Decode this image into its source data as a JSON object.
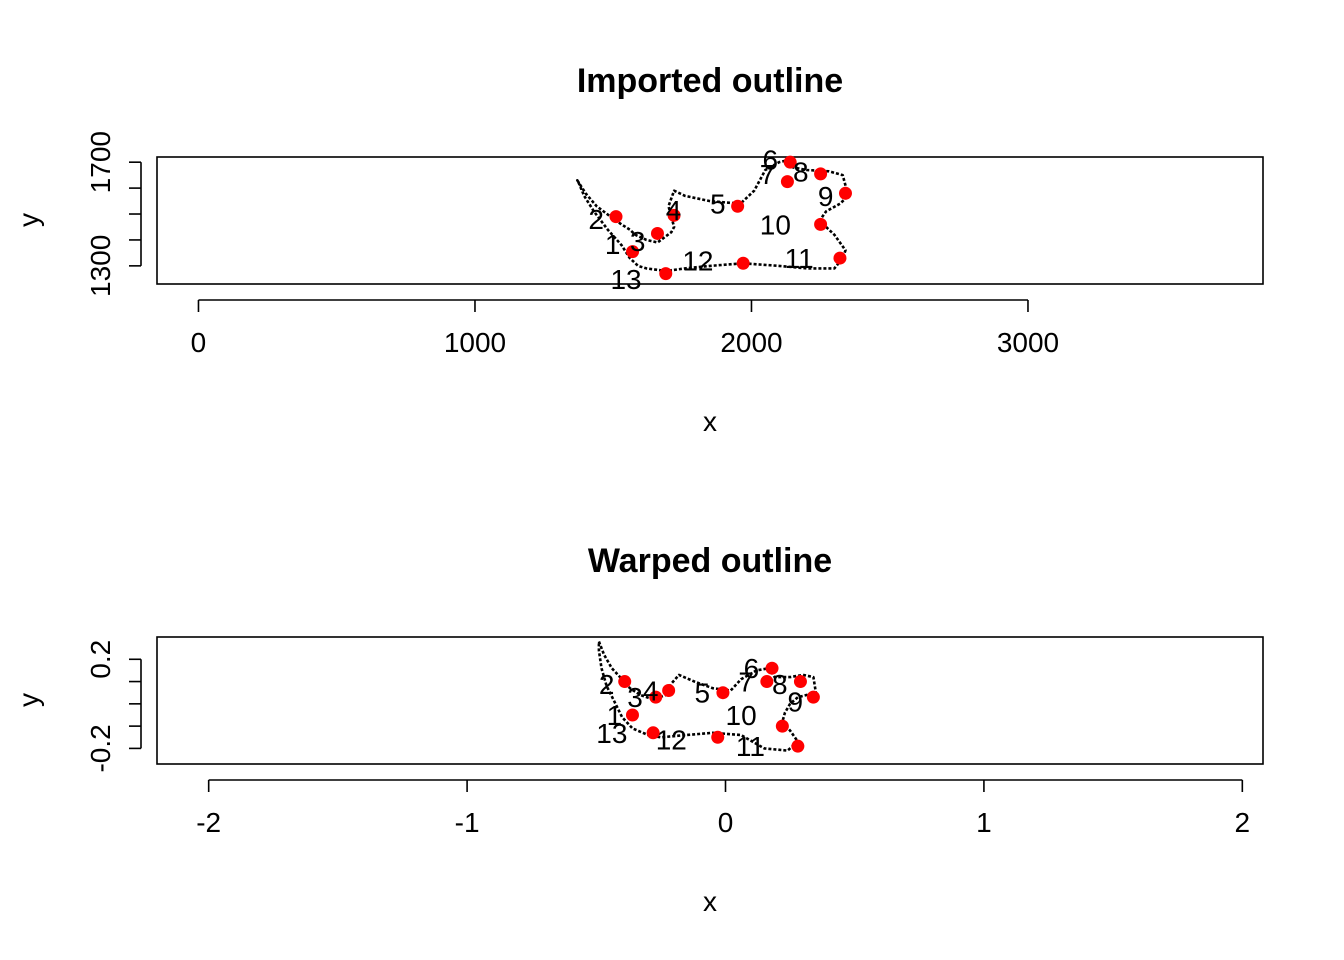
{
  "chart_data": [
    {
      "type": "scatter",
      "title": "Imported outline",
      "xlabel": "x",
      "ylabel": "y",
      "xlim": [
        -150,
        3850
      ],
      "ylim": [
        1230,
        1720
      ],
      "xticks": [
        0,
        1000,
        2000,
        3000
      ],
      "yticks": [
        1300,
        1400,
        1500,
        1600,
        1700
      ],
      "yticklabels": [
        "1300",
        "",
        "",
        "",
        "1700"
      ],
      "colors": {
        "landmark": "#ff0000",
        "outline": "#000000"
      },
      "outline": [
        [
          1370,
          1630
        ],
        [
          1400,
          1580
        ],
        [
          1440,
          1530
        ],
        [
          1490,
          1490
        ],
        [
          1530,
          1460
        ],
        [
          1560,
          1440
        ],
        [
          1580,
          1420
        ],
        [
          1620,
          1400
        ],
        [
          1660,
          1390
        ],
        [
          1710,
          1430
        ],
        [
          1720,
          1450
        ],
        [
          1710,
          1490
        ],
        [
          1700,
          1530
        ],
        [
          1720,
          1590
        ],
        [
          1760,
          1570
        ],
        [
          1850,
          1550
        ],
        [
          1960,
          1540
        ],
        [
          2010,
          1590
        ],
        [
          2050,
          1670
        ],
        [
          2100,
          1700
        ],
        [
          2140,
          1710
        ],
        [
          2150,
          1680
        ],
        [
          2200,
          1670
        ],
        [
          2280,
          1665
        ],
        [
          2330,
          1650
        ],
        [
          2350,
          1570
        ],
        [
          2320,
          1540
        ],
        [
          2270,
          1510
        ],
        [
          2250,
          1480
        ],
        [
          2260,
          1460
        ],
        [
          2300,
          1420
        ],
        [
          2340,
          1360
        ],
        [
          2330,
          1330
        ],
        [
          2300,
          1290
        ],
        [
          2200,
          1290
        ],
        [
          2100,
          1300
        ],
        [
          1970,
          1310
        ],
        [
          1850,
          1300
        ],
        [
          1760,
          1290
        ],
        [
          1690,
          1280
        ],
        [
          1620,
          1290
        ],
        [
          1590,
          1300
        ],
        [
          1560,
          1330
        ],
        [
          1530,
          1380
        ],
        [
          1480,
          1440
        ],
        [
          1430,
          1510
        ],
        [
          1395,
          1570
        ],
        [
          1375,
          1620
        ]
      ],
      "landmarks": [
        {
          "label": "1",
          "x": 1570,
          "y": 1355
        },
        {
          "label": "2",
          "x": 1510,
          "y": 1490
        },
        {
          "label": "3",
          "x": 1660,
          "y": 1425
        },
        {
          "label": "4",
          "x": 1720,
          "y": 1495
        },
        {
          "label": "5",
          "x": 1950,
          "y": 1530
        },
        {
          "label": "6",
          "x": 2140,
          "y": 1700
        },
        {
          "label": "7",
          "x": 2130,
          "y": 1625
        },
        {
          "label": "8",
          "x": 2250,
          "y": 1655
        },
        {
          "label": "9",
          "x": 2340,
          "y": 1580
        },
        {
          "label": "10",
          "x": 2250,
          "y": 1460
        },
        {
          "label": "11",
          "x": 2320,
          "y": 1330
        },
        {
          "label": "12",
          "x": 1970,
          "y": 1310
        },
        {
          "label": "13",
          "x": 1690,
          "y": 1270
        }
      ],
      "label_offsets_data": [
        [
          -100,
          30
        ],
        [
          -100,
          -10
        ],
        [
          -100,
          -30
        ],
        [
          -30,
          20
        ],
        [
          -100,
          10
        ],
        [
          -100,
          10
        ],
        [
          -100,
          30
        ],
        [
          -100,
          10
        ],
        [
          -100,
          -10
        ],
        [
          -220,
          0
        ],
        [
          -200,
          0
        ],
        [
          -220,
          10
        ],
        [
          -200,
          -20
        ]
      ]
    },
    {
      "type": "scatter",
      "title": "Warped outline",
      "xlabel": "x",
      "ylabel": "y",
      "xlim": [
        -2.2,
        2.08
      ],
      "ylim": [
        -0.27,
        0.3
      ],
      "xticks": [
        -2,
        -1,
        0,
        1,
        2
      ],
      "yticks": [
        -0.2,
        -0.1,
        0.0,
        0.1,
        0.2
      ],
      "yticklabels": [
        "-0.2",
        "",
        "",
        "",
        "0.2"
      ],
      "colors": {
        "landmark": "#ff0000",
        "outline": "#000000"
      },
      "outline": [
        [
          -0.49,
          0.28
        ],
        [
          -0.47,
          0.22
        ],
        [
          -0.44,
          0.16
        ],
        [
          -0.4,
          0.11
        ],
        [
          -0.37,
          0.07
        ],
        [
          -0.33,
          0.04
        ],
        [
          -0.28,
          0.02
        ],
        [
          -0.23,
          0.04
        ],
        [
          -0.21,
          0.09
        ],
        [
          -0.18,
          0.13
        ],
        [
          -0.12,
          0.1
        ],
        [
          -0.05,
          0.07
        ],
        [
          0.02,
          0.06
        ],
        [
          0.06,
          0.11
        ],
        [
          0.12,
          0.15
        ],
        [
          0.17,
          0.16
        ],
        [
          0.19,
          0.12
        ],
        [
          0.25,
          0.12
        ],
        [
          0.3,
          0.13
        ],
        [
          0.34,
          0.12
        ],
        [
          0.35,
          0.05
        ],
        [
          0.28,
          0.03
        ],
        [
          0.25,
          0.0
        ],
        [
          0.23,
          -0.04
        ],
        [
          0.22,
          -0.08
        ],
        [
          0.25,
          -0.12
        ],
        [
          0.28,
          -0.17
        ],
        [
          0.24,
          -0.21
        ],
        [
          0.15,
          -0.2
        ],
        [
          0.06,
          -0.14
        ],
        [
          -0.05,
          -0.13
        ],
        [
          -0.15,
          -0.14
        ],
        [
          -0.25,
          -0.15
        ],
        [
          -0.3,
          -0.14
        ],
        [
          -0.36,
          -0.11
        ],
        [
          -0.4,
          -0.06
        ],
        [
          -0.43,
          0.01
        ],
        [
          -0.46,
          0.08
        ],
        [
          -0.48,
          0.16
        ],
        [
          -0.49,
          0.24
        ]
      ],
      "landmarks": [
        {
          "label": "1",
          "x": -0.36,
          "y": -0.05
        },
        {
          "label": "2",
          "x": -0.39,
          "y": 0.1
        },
        {
          "label": "3",
          "x": -0.27,
          "y": 0.03
        },
        {
          "label": "4",
          "x": -0.22,
          "y": 0.06
        },
        {
          "label": "5",
          "x": -0.01,
          "y": 0.05
        },
        {
          "label": "6",
          "x": 0.18,
          "y": 0.16
        },
        {
          "label": "7",
          "x": 0.16,
          "y": 0.1
        },
        {
          "label": "8",
          "x": 0.29,
          "y": 0.1
        },
        {
          "label": "9",
          "x": 0.34,
          "y": 0.03
        },
        {
          "label": "10",
          "x": 0.22,
          "y": -0.1
        },
        {
          "label": "11",
          "x": 0.28,
          "y": -0.19
        },
        {
          "label": "12",
          "x": -0.03,
          "y": -0.15
        },
        {
          "label": "13",
          "x": -0.28,
          "y": -0.13
        }
      ],
      "label_offsets_data": [
        [
          -0.1,
          0.0
        ],
        [
          -0.1,
          -0.01
        ],
        [
          -0.11,
          0.0
        ],
        [
          -0.1,
          0.0
        ],
        [
          -0.11,
          0.0
        ],
        [
          -0.11,
          0.0
        ],
        [
          -0.11,
          0.0
        ],
        [
          -0.11,
          -0.01
        ],
        [
          -0.1,
          -0.02
        ],
        [
          -0.22,
          0.05
        ],
        [
          -0.24,
          0.0
        ],
        [
          -0.24,
          -0.01
        ],
        [
          -0.22,
          0.0
        ]
      ]
    }
  ]
}
